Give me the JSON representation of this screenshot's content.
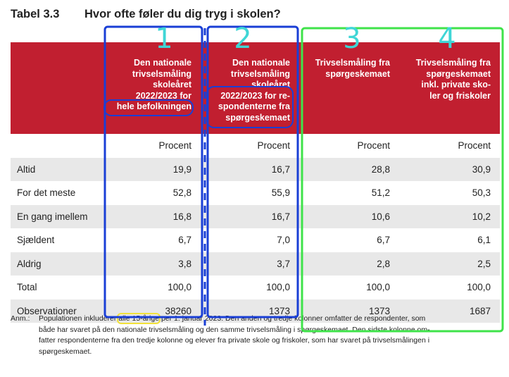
{
  "title": {
    "number": "Tabel 3.3",
    "text": "Hvor ofte føler du dig tryg i skolen?"
  },
  "table": {
    "header": [
      [
        "Den nationale",
        "trivselsmåling",
        "skoleåret",
        "2022/2023  for",
        "hele befolkningen"
      ],
      [
        "Den nationale",
        "trivselsmåling",
        "skoleåret",
        "2022/2023 for re-",
        "spondenterne fra",
        "spørgeskemaet"
      ],
      [
        "Trivselsmåling fra",
        "spørgeskemaet"
      ],
      [
        "Trivselsmåling fra",
        "spørgeskemaet",
        "inkl. private sko-",
        "ler og friskoler"
      ]
    ],
    "unit_row": [
      "Procent",
      "Procent",
      "Procent",
      "Procent"
    ],
    "rows": [
      [
        "Altid",
        "19,9",
        "16,7",
        "28,8",
        "30,9"
      ],
      [
        "For det meste",
        "52,8",
        "55,9",
        "51,2",
        "50,3"
      ],
      [
        "En gang imellem",
        "16,8",
        "16,7",
        "10,6",
        "10,2"
      ],
      [
        "Sjældent",
        "6,7",
        "7,0",
        "6,7",
        "6,1"
      ],
      [
        "Aldrig",
        "3,8",
        "3,7",
        "2,8",
        "2,5"
      ],
      [
        "Total",
        "100,0",
        "100,0",
        "100,0",
        "100,0"
      ],
      [
        "Observationer",
        "38260",
        "1373",
        "1373",
        "1687"
      ]
    ]
  },
  "note": {
    "label": "Anm.:",
    "first_line": [
      "Populationen inkluderer ",
      "alle 15-årige",
      " per 1. januar 2023. Den anden og tredje kolonner omfatter de respondenter, som"
    ],
    "lines": [
      "både har svaret på den nationale trivselsmåling og den samme trivselsmåling i spørgeskemaet. Den sidste kolonne om-",
      "fatter respondenterne fra den tredje kolonne og elever fra private skole og friskoler, som har svaret på trivselsmålingen i",
      "spørgeskemaet."
    ]
  },
  "annotations": [
    "1",
    "2",
    "3",
    "4"
  ]
}
